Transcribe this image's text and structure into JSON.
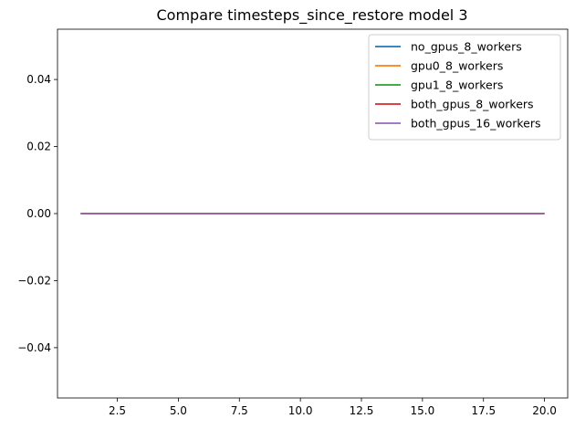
{
  "chart_data": {
    "type": "line",
    "title": "Compare timesteps_since_restore model 3",
    "xlabel": "",
    "ylabel": "",
    "xlim": [
      0.05,
      20.95
    ],
    "ylim": [
      -0.055,
      0.055
    ],
    "xticks": [
      2.5,
      5.0,
      7.5,
      10.0,
      12.5,
      15.0,
      17.5,
      20.0
    ],
    "xtick_labels": [
      "2.5",
      "5.0",
      "7.5",
      "10.0",
      "12.5",
      "15.0",
      "17.5",
      "20.0"
    ],
    "yticks": [
      -0.04,
      -0.02,
      0.0,
      0.02,
      0.04
    ],
    "ytick_labels": [
      "−0.04",
      "−0.02",
      "0.00",
      "0.02",
      "0.04"
    ],
    "grid": false,
    "legend_position": "top-right",
    "x": [
      1,
      2,
      3,
      4,
      5,
      6,
      7,
      8,
      9,
      10,
      11,
      12,
      13,
      14,
      15,
      16,
      17,
      18,
      19,
      20
    ],
    "series": [
      {
        "name": "no_gpus_8_workers",
        "color": "#1f77b4",
        "values": [
          0,
          0,
          0,
          0,
          0,
          0,
          0,
          0,
          0,
          0,
          0,
          0,
          0,
          0,
          0,
          0,
          0,
          0,
          0,
          0
        ]
      },
      {
        "name": "gpu0_8_workers",
        "color": "#ff7f0e",
        "values": [
          0,
          0,
          0,
          0,
          0,
          0,
          0,
          0,
          0,
          0,
          0,
          0,
          0,
          0,
          0,
          0,
          0,
          0,
          0,
          0
        ]
      },
      {
        "name": "gpu1_8_workers",
        "color": "#2ca02c",
        "values": [
          0,
          0,
          0,
          0,
          0,
          0,
          0,
          0,
          0,
          0,
          0,
          0,
          0,
          0,
          0,
          0,
          0,
          0,
          0,
          0
        ]
      },
      {
        "name": "both_gpus_8_workers",
        "color": "#d62728",
        "values": [
          0,
          0,
          0,
          0,
          0,
          0,
          0,
          0,
          0,
          0,
          0,
          0,
          0,
          0,
          0,
          0,
          0,
          0,
          0,
          0
        ]
      },
      {
        "name": "both_gpus_16_workers",
        "color": "#9467bd",
        "values": [
          0,
          0,
          0,
          0,
          0,
          0,
          0,
          0,
          0,
          0,
          0,
          0,
          0,
          0,
          0,
          0,
          0,
          0,
          0,
          0
        ]
      }
    ]
  }
}
